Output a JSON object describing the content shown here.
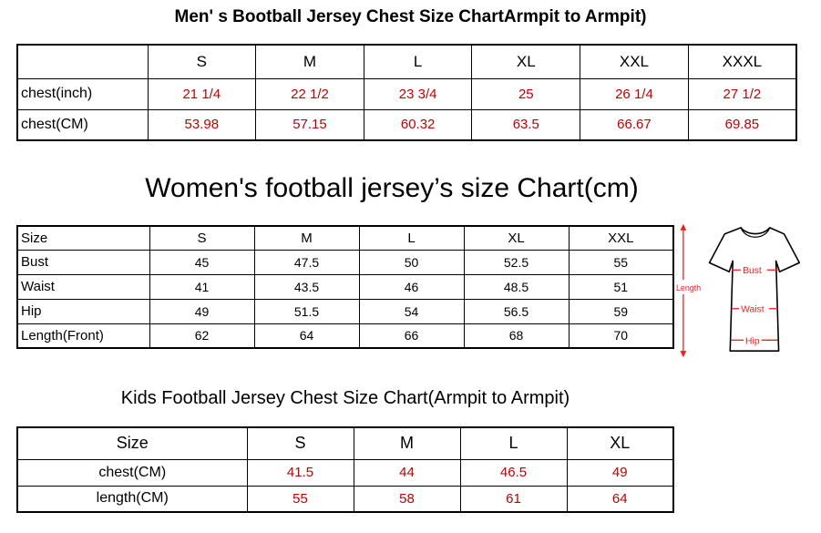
{
  "colors": {
    "ink": "#000000",
    "value_red": "#c00000",
    "diagram_red": "#ff1a1a"
  },
  "sections": {
    "men": {
      "title": "Men' s Bootball Jersey Chest Size ChartArmpit to Armpit)"
    },
    "women": {
      "title": "Women's football jersey’s size Chart(cm)"
    },
    "kids": {
      "title": "Kids Football Jersey Chest Size Chart(Armpit to Armpit)"
    }
  },
  "diagram": {
    "length_label": "Length",
    "bust_label": "Bust",
    "waist_label": "Waist",
    "hip_label": "Hip"
  },
  "chart_data": [
    {
      "type": "table",
      "title": "Men' s Bootball Jersey Chest Size ChartArmpit to Armpit)",
      "columns": [
        "",
        "S",
        "M",
        "L",
        "XL",
        "XXL",
        "XXXL"
      ],
      "rows": [
        {
          "label": "chest(inch)",
          "values": [
            "21 1/4",
            "22 1/2",
            "23 3/4",
            "25",
            "26 1/4",
            "27 1/2"
          ]
        },
        {
          "label": "chest(CM)",
          "values": [
            "53.98",
            "57.15",
            "60.32",
            "63.5",
            "66.67",
            "69.85"
          ]
        }
      ]
    },
    {
      "type": "table",
      "title": "Women's football jersey’s size Chart(cm)",
      "columns": [
        "Size",
        "S",
        "M",
        "L",
        "XL",
        "XXL"
      ],
      "rows": [
        {
          "label": "Bust",
          "values": [
            "45",
            "47.5",
            "50",
            "52.5",
            "55"
          ]
        },
        {
          "label": "Waist",
          "values": [
            "41",
            "43.5",
            "46",
            "48.5",
            "51"
          ]
        },
        {
          "label": "Hip",
          "values": [
            "49",
            "51.5",
            "54",
            "56.5",
            "59"
          ]
        },
        {
          "label": "Length(Front)",
          "values": [
            "62",
            "64",
            "66",
            "68",
            "70"
          ]
        }
      ]
    },
    {
      "type": "table",
      "title": "Kids Football Jersey Chest Size Chart(Armpit to Armpit)",
      "columns": [
        "Size",
        "S",
        "M",
        "L",
        "XL"
      ],
      "rows": [
        {
          "label": "chest(CM)",
          "values": [
            "41.5",
            "44",
            "46.5",
            "49"
          ]
        },
        {
          "label": "length(CM)",
          "values": [
            "55",
            "58",
            "61",
            "64"
          ]
        }
      ]
    }
  ]
}
